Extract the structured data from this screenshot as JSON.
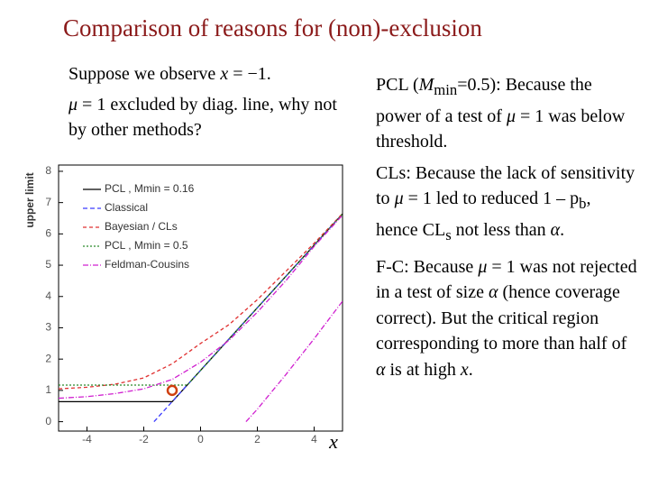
{
  "title": "Comparison of reasons for (non)-exclusion",
  "left_text": [
    [
      "Suppose we observe ",
      {
        "i": "x"
      },
      " = −1."
    ],
    [
      {
        "i": "μ"
      },
      " = 1 excluded by diag. line, why not by other methods?"
    ]
  ],
  "right_text": [
    [
      "PCL (",
      {
        "i": "M"
      },
      {
        "sub": "min"
      },
      "=0.5):  Because the power of a test of ",
      {
        "i": "μ"
      },
      " = 1 was below threshold."
    ],
    [
      "CLs:  Because the lack of sensitivity to ",
      {
        "i": "μ"
      },
      " = 1 led to reduced 1 – p",
      {
        "sub": "b"
      },
      ", hence CL",
      {
        "sub": "s"
      },
      " not less than ",
      {
        "i": "α"
      },
      "."
    ],
    [
      "F-C:  Because ",
      {
        "i": "μ"
      },
      " = 1 was not rejected in a test of size ",
      {
        "i": "α"
      },
      " (hence coverage correct).  But the critical region corresponding to more than half of ",
      {
        "i": "α"
      },
      " is at high ",
      {
        "i": "x"
      },
      "."
    ]
  ],
  "chart_data": {
    "type": "line",
    "y_label": "upper limit",
    "x_label": "x",
    "xlim": [
      -5,
      5
    ],
    "ylim": [
      -0.3,
      8.2
    ],
    "xticks": [
      -4,
      -2,
      0,
      2,
      4
    ],
    "yticks": [
      0,
      1,
      2,
      3,
      4,
      5,
      6,
      7,
      8
    ],
    "grid": false,
    "series": [
      {
        "name": "PCL , Mmin = 0.16",
        "color": "#000000",
        "dash": "",
        "x": [
          -5,
          -1,
          5
        ],
        "values": [
          0.64,
          0.64,
          6.64
        ]
      },
      {
        "name": "Classical",
        "color": "#3a3aff",
        "dash": "5 3",
        "x": [
          -1.64,
          5
        ],
        "values": [
          0,
          6.64
        ]
      },
      {
        "name": "Bayesian / CLs",
        "color": "#e03030",
        "dash": "4 3",
        "x": [
          -5,
          -4,
          -3,
          -2,
          -1,
          0,
          1,
          2,
          3,
          4,
          5
        ],
        "values": [
          1.05,
          1.1,
          1.2,
          1.4,
          1.85,
          2.5,
          3.1,
          3.9,
          4.8,
          5.7,
          6.65
        ]
      },
      {
        "name": "PCL , Mmin = 0.5",
        "color": "#2a8a2a",
        "dash": "2 2",
        "x": [
          -5,
          -0.47,
          5
        ],
        "values": [
          1.17,
          1.17,
          6.64
        ]
      },
      {
        "name": "Feldman-Cousins",
        "color": "#d020d0",
        "dash": "6 2 1 2",
        "x": [
          -5,
          -4,
          -3,
          -2,
          -1,
          0,
          1,
          2,
          3,
          4,
          5
        ],
        "values": [
          0.75,
          0.8,
          0.9,
          1.05,
          1.35,
          1.9,
          2.6,
          3.5,
          4.5,
          5.6,
          6.6
        ]
      },
      {
        "color": "#d020d0",
        "dash": "6 2 1 2",
        "x": [
          1.6,
          2,
          3,
          4,
          5
        ],
        "values": [
          0,
          0.4,
          1.5,
          2.65,
          3.85
        ]
      }
    ],
    "point": {
      "x": -1,
      "y": 1,
      "color": "#d04010"
    }
  }
}
